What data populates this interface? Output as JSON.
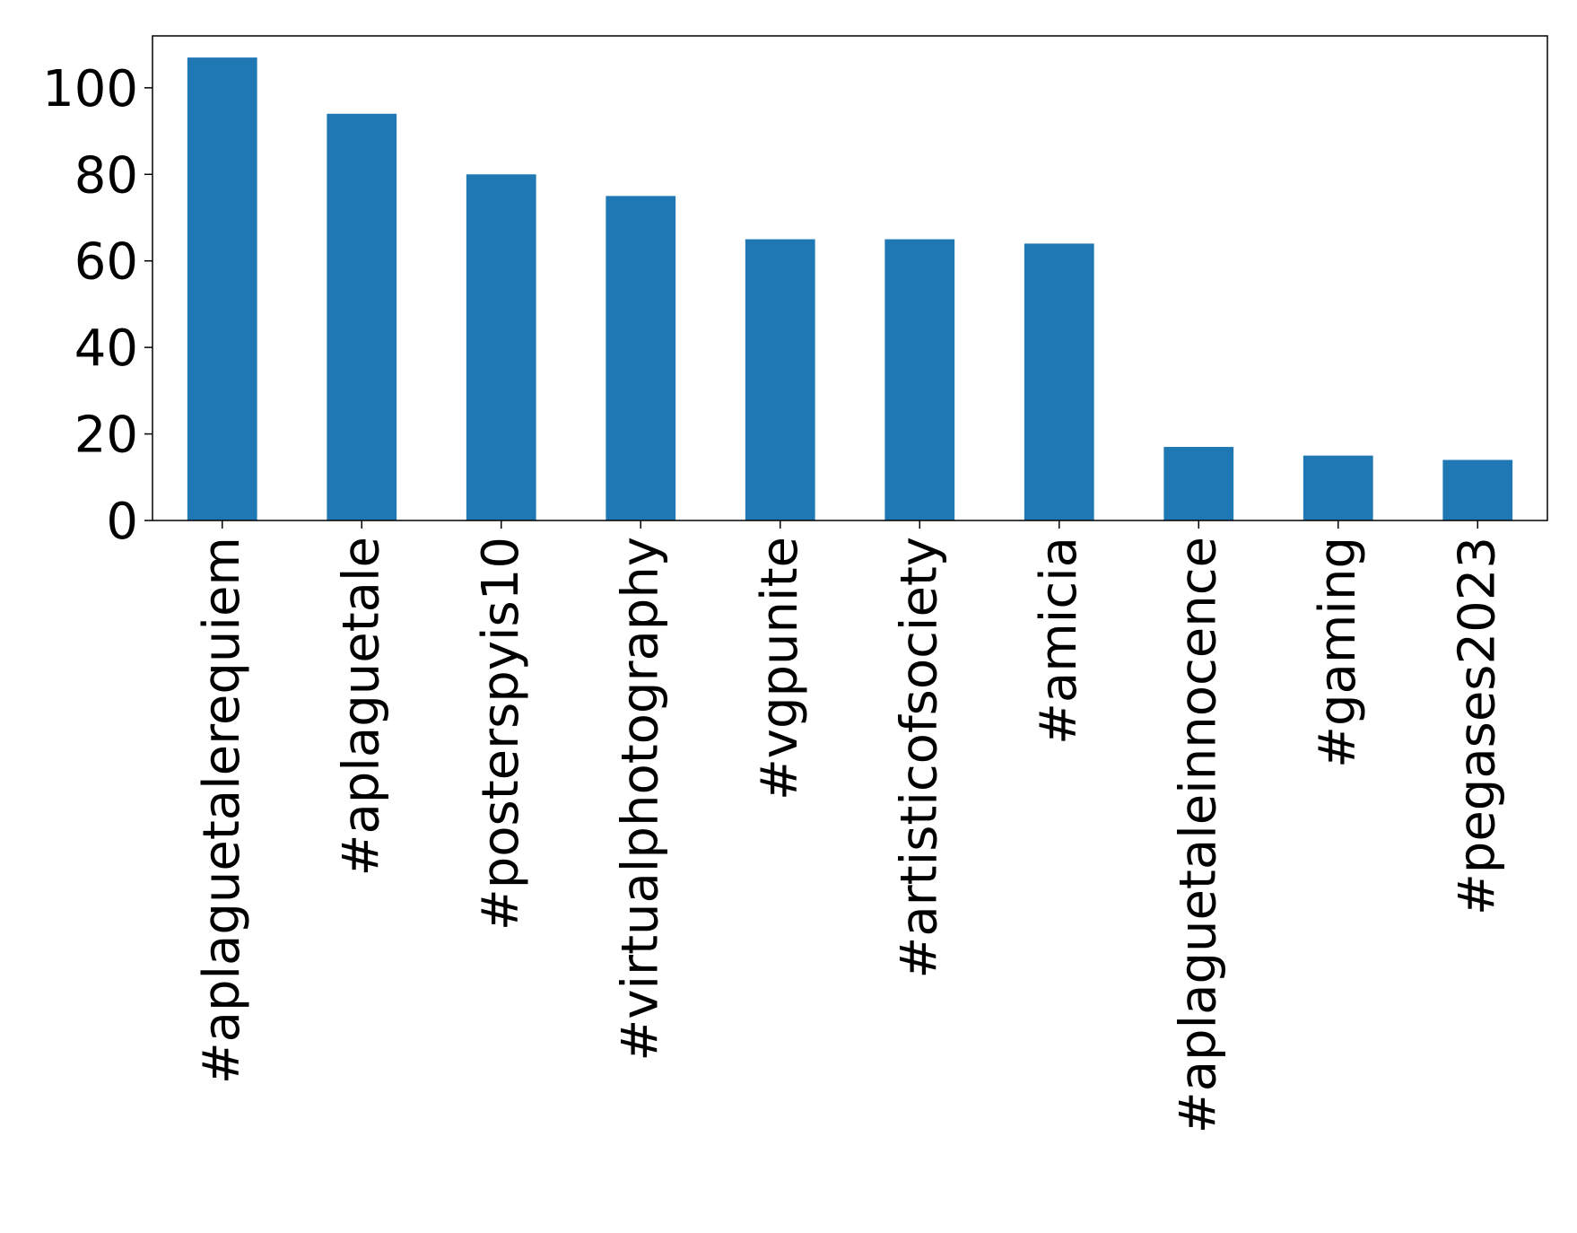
{
  "chart_data": {
    "type": "bar",
    "title": "",
    "xlabel": "",
    "ylabel": "",
    "categories": [
      "#aplaguetalerequiem",
      "#aplaguetale",
      "#posterspyis10",
      "#virtualphotography",
      "#vgpunite",
      "#artisticofsociety",
      "#amicia",
      "#aplaguetaleinnocence",
      "#gaming",
      "#pegases2023"
    ],
    "values": [
      107,
      94,
      80,
      75,
      65,
      65,
      64,
      17,
      15,
      14
    ],
    "ylim": [
      0,
      112
    ],
    "yticks": [
      0,
      20,
      40,
      60,
      80,
      100
    ],
    "grid": false,
    "legend": "none",
    "bar_color": "#1f77b4"
  }
}
